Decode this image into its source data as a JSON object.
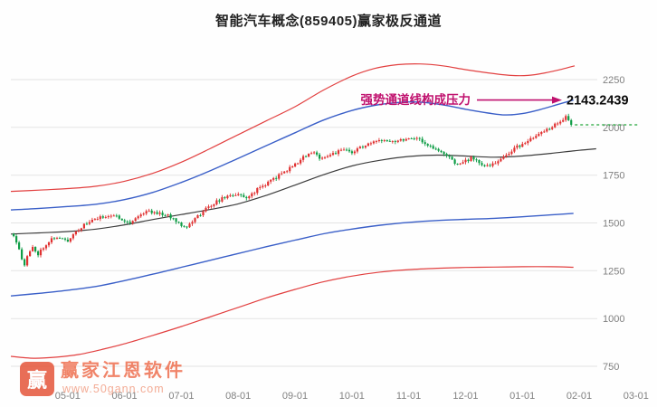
{
  "title": "智能汽车概念(859405)赢家极反通道",
  "annotation": {
    "label": "强势通道线构成压力",
    "value": "2143.2439"
  },
  "watermark": {
    "logo_char": "赢",
    "name": "赢家江恩软件",
    "url": "www.50gann.com"
  },
  "colors": {
    "up_candle": "#e03131",
    "down_candle": "#0f9d46",
    "outer_channel": "#e24040",
    "strong_channel": "#3a5fc8",
    "middle_line": "#3c3c3c",
    "last_price_dash": "#22a53a",
    "annotation": "#c0116e",
    "grid": "#e3e3e3",
    "axis_text": "#808080",
    "watermark": "#ee6a49"
  },
  "chart_data": {
    "type": "candlestick",
    "title": "智能汽车概念(859405)赢家极反通道",
    "x_ticks": [
      "05-01",
      "06-01",
      "07-01",
      "08-01",
      "09-01",
      "10-01",
      "11-01",
      "12-01",
      "01-01",
      "02-01",
      "03-01"
    ],
    "y_ticks": [
      2250,
      2000,
      1750,
      1500,
      1250,
      1000,
      750
    ],
    "y_range": [
      700,
      2450
    ],
    "x_range_months": [
      0,
      11.2
    ],
    "grid": "horizontal-only",
    "legend": "none",
    "pressure_level": 2143.2439,
    "last_close": 2002,
    "series": [
      {
        "name": "upper-outer-red-line",
        "color": "#e24040",
        "width": 1.2,
        "points": [
          [
            0,
            1665
          ],
          [
            0.5,
            1672
          ],
          [
            1,
            1680
          ],
          [
            1.5,
            1692
          ],
          [
            2,
            1718
          ],
          [
            2.5,
            1760
          ],
          [
            3,
            1818
          ],
          [
            3.5,
            1888
          ],
          [
            4,
            1962
          ],
          [
            4.5,
            2035
          ],
          [
            5,
            2108
          ],
          [
            5.5,
            2195
          ],
          [
            6,
            2268
          ],
          [
            6.4,
            2308
          ],
          [
            6.8,
            2328
          ],
          [
            7.2,
            2332
          ],
          [
            7.6,
            2322
          ],
          [
            8,
            2302
          ],
          [
            8.4,
            2285
          ],
          [
            8.8,
            2272
          ],
          [
            9.1,
            2272
          ],
          [
            9.4,
            2285
          ],
          [
            9.7,
            2305
          ],
          [
            9.92,
            2322
          ]
        ]
      },
      {
        "name": "upper-strong-blue-line",
        "color": "#3a5fc8",
        "width": 1.4,
        "points": [
          [
            0,
            1568
          ],
          [
            0.5,
            1576
          ],
          [
            1,
            1586
          ],
          [
            1.5,
            1598
          ],
          [
            2,
            1622
          ],
          [
            2.5,
            1660
          ],
          [
            3,
            1712
          ],
          [
            3.5,
            1772
          ],
          [
            4,
            1838
          ],
          [
            4.5,
            1905
          ],
          [
            5,
            1972
          ],
          [
            5.5,
            2038
          ],
          [
            6,
            2088
          ],
          [
            6.4,
            2115
          ],
          [
            6.8,
            2130
          ],
          [
            7.2,
            2132
          ],
          [
            7.6,
            2118
          ],
          [
            8,
            2095
          ],
          [
            8.4,
            2075
          ],
          [
            8.7,
            2065
          ],
          [
            9,
            2072
          ],
          [
            9.3,
            2092
          ],
          [
            9.6,
            2118
          ],
          [
            9.9,
            2143
          ]
        ]
      },
      {
        "name": "middle-black-line",
        "color": "#3c3c3c",
        "width": 1.2,
        "points": [
          [
            0,
            1442
          ],
          [
            0.5,
            1448
          ],
          [
            1,
            1455
          ],
          [
            1.5,
            1468
          ],
          [
            2,
            1490
          ],
          [
            2.5,
            1518
          ],
          [
            3,
            1544
          ],
          [
            3.5,
            1570
          ],
          [
            4,
            1600
          ],
          [
            4.5,
            1645
          ],
          [
            5,
            1698
          ],
          [
            5.5,
            1752
          ],
          [
            6,
            1798
          ],
          [
            6.5,
            1828
          ],
          [
            7,
            1848
          ],
          [
            7.5,
            1855
          ],
          [
            8,
            1850
          ],
          [
            8.5,
            1844
          ],
          [
            9,
            1850
          ],
          [
            9.5,
            1864
          ],
          [
            10,
            1880
          ],
          [
            10.3,
            1888
          ]
        ]
      },
      {
        "name": "lower-strong-blue-line",
        "color": "#3a5fc8",
        "width": 1.4,
        "points": [
          [
            0,
            1118
          ],
          [
            0.5,
            1132
          ],
          [
            1,
            1148
          ],
          [
            1.5,
            1168
          ],
          [
            2,
            1198
          ],
          [
            2.5,
            1232
          ],
          [
            3,
            1268
          ],
          [
            3.5,
            1304
          ],
          [
            4,
            1340
          ],
          [
            4.5,
            1376
          ],
          [
            5,
            1410
          ],
          [
            5.5,
            1443
          ],
          [
            6,
            1468
          ],
          [
            6.5,
            1488
          ],
          [
            7,
            1503
          ],
          [
            7.5,
            1513
          ],
          [
            8,
            1519
          ],
          [
            8.5,
            1524
          ],
          [
            9,
            1532
          ],
          [
            9.5,
            1542
          ],
          [
            9.9,
            1550
          ]
        ]
      },
      {
        "name": "lower-outer-red-line",
        "color": "#e24040",
        "width": 1.2,
        "points": [
          [
            0,
            802
          ],
          [
            0.4,
            792
          ],
          [
            0.8,
            798
          ],
          [
            1.2,
            812
          ],
          [
            1.6,
            838
          ],
          [
            2,
            868
          ],
          [
            2.5,
            912
          ],
          [
            3,
            958
          ],
          [
            3.5,
            1008
          ],
          [
            4,
            1058
          ],
          [
            4.5,
            1108
          ],
          [
            5,
            1152
          ],
          [
            5.5,
            1192
          ],
          [
            6,
            1222
          ],
          [
            6.5,
            1243
          ],
          [
            7,
            1256
          ],
          [
            7.5,
            1263
          ],
          [
            8,
            1267
          ],
          [
            8.5,
            1269
          ],
          [
            9,
            1271
          ],
          [
            9.5,
            1271
          ],
          [
            9.9,
            1268
          ]
        ]
      }
    ],
    "price": {
      "candles_per_month": 21,
      "close_anchors": [
        [
          0.05,
          1435
        ],
        [
          0.12,
          1390
        ],
        [
          0.18,
          1340
        ],
        [
          0.22,
          1260
        ],
        [
          0.28,
          1320
        ],
        [
          0.38,
          1372
        ],
        [
          0.48,
          1338
        ],
        [
          0.6,
          1385
        ],
        [
          0.75,
          1425
        ],
        [
          0.9,
          1415
        ],
        [
          1.0,
          1405
        ],
        [
          1.1,
          1445
        ],
        [
          1.25,
          1480
        ],
        [
          1.4,
          1510
        ],
        [
          1.55,
          1525
        ],
        [
          1.7,
          1540
        ],
        [
          1.85,
          1535
        ],
        [
          2.0,
          1515
        ],
        [
          2.1,
          1500
        ],
        [
          2.25,
          1540
        ],
        [
          2.4,
          1562
        ],
        [
          2.55,
          1555
        ],
        [
          2.7,
          1545
        ],
        [
          2.85,
          1525
        ],
        [
          3.0,
          1492
        ],
        [
          3.1,
          1480
        ],
        [
          3.25,
          1525
        ],
        [
          3.4,
          1565
        ],
        [
          3.55,
          1600
        ],
        [
          3.7,
          1625
        ],
        [
          3.85,
          1645
        ],
        [
          4.0,
          1650
        ],
        [
          4.12,
          1628
        ],
        [
          4.25,
          1655
        ],
        [
          4.4,
          1690
        ],
        [
          4.55,
          1716
        ],
        [
          4.7,
          1745
        ],
        [
          4.85,
          1775
        ],
        [
          5.0,
          1806
        ],
        [
          5.15,
          1845
        ],
        [
          5.3,
          1868
        ],
        [
          5.45,
          1840
        ],
        [
          5.6,
          1855
        ],
        [
          5.75,
          1872
        ],
        [
          5.9,
          1882
        ],
        [
          6.0,
          1868
        ],
        [
          6.15,
          1895
        ],
        [
          6.3,
          1912
        ],
        [
          6.45,
          1925
        ],
        [
          6.6,
          1938
        ],
        [
          6.75,
          1928
        ],
        [
          6.9,
          1938
        ],
        [
          7.0,
          1942
        ],
        [
          7.12,
          1950
        ],
        [
          7.25,
          1925
        ],
        [
          7.4,
          1895
        ],
        [
          7.55,
          1872
        ],
        [
          7.7,
          1845
        ],
        [
          7.85,
          1808
        ],
        [
          8.0,
          1822
        ],
        [
          8.12,
          1842
        ],
        [
          8.25,
          1815
        ],
        [
          8.4,
          1792
        ],
        [
          8.52,
          1812
        ],
        [
          8.65,
          1838
        ],
        [
          8.8,
          1878
        ],
        [
          8.95,
          1905
        ],
        [
          9.05,
          1918
        ],
        [
          9.2,
          1945
        ],
        [
          9.35,
          1972
        ],
        [
          9.5,
          2000
        ],
        [
          9.65,
          2030
        ],
        [
          9.78,
          2058
        ],
        [
          9.88,
          2002
        ]
      ]
    }
  }
}
